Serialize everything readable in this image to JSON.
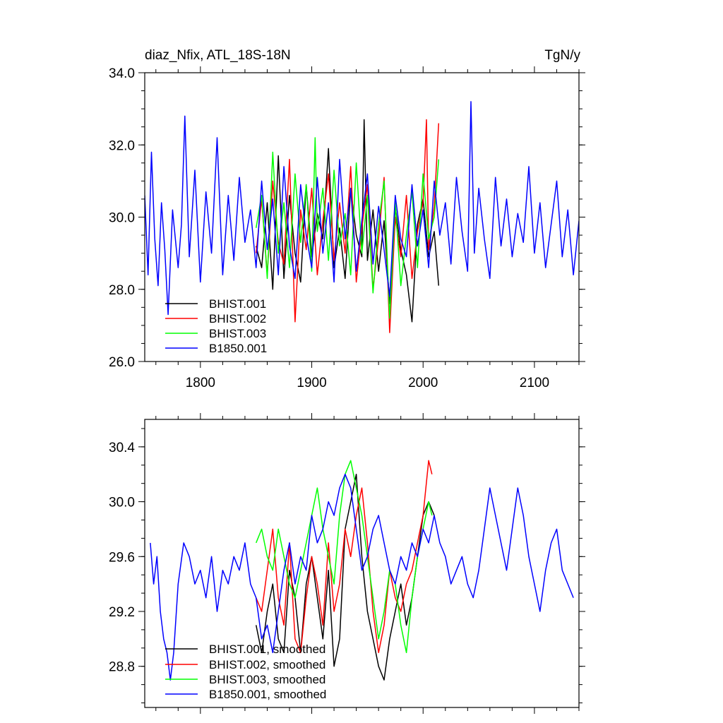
{
  "chart_data": [
    {
      "type": "line",
      "title": "diaz_Nfix, ATL_18S-18N",
      "units": "TgN/y",
      "xlim": [
        1750,
        2140
      ],
      "ylim": [
        26.0,
        34.0
      ],
      "x_ticks": [
        1800,
        1900,
        2000,
        2100
      ],
      "x_tick_labels": [
        "1800",
        "1900",
        "2000",
        "2100"
      ],
      "y_ticks": [
        26.0,
        28.0,
        30.0,
        32.0,
        34.0
      ],
      "y_tick_labels": [
        "26.0",
        "28.0",
        "30.0",
        "32.0",
        "34.0"
      ],
      "legend_position": "bottom-left",
      "series": [
        {
          "name": "BHIST.001",
          "color": "#000000",
          "x": [
            1850,
            1855,
            1860,
            1865,
            1870,
            1875,
            1880,
            1885,
            1890,
            1895,
            1900,
            1905,
            1910,
            1915,
            1920,
            1925,
            1930,
            1935,
            1940,
            1945,
            1947,
            1950,
            1955,
            1960,
            1965,
            1970,
            1975,
            1980,
            1985,
            1990,
            1995,
            2000,
            2005,
            2010,
            2014
          ],
          "y": [
            29.2,
            28.6,
            30.4,
            28.0,
            31.7,
            28.3,
            30.6,
            29.0,
            28.2,
            30.9,
            28.9,
            30.1,
            29.4,
            31.9,
            28.6,
            29.7,
            28.3,
            30.8,
            29.5,
            28.9,
            32.7,
            28.8,
            30.2,
            28.5,
            29.9,
            27.6,
            30.3,
            29.1,
            28.4,
            27.1,
            29.8,
            30.5,
            28.9,
            29.6,
            28.1
          ]
        },
        {
          "name": "BHIST.002",
          "color": "#ff0000",
          "x": [
            1850,
            1855,
            1860,
            1865,
            1870,
            1875,
            1880,
            1885,
            1890,
            1895,
            1900,
            1905,
            1910,
            1915,
            1920,
            1925,
            1930,
            1935,
            1940,
            1945,
            1950,
            1955,
            1960,
            1965,
            1970,
            1975,
            1980,
            1985,
            1990,
            1995,
            2000,
            2003,
            2005,
            2010,
            2014
          ],
          "y": [
            29.0,
            30.5,
            28.4,
            31.0,
            29.3,
            28.7,
            31.6,
            27.1,
            30.2,
            29.1,
            30.8,
            28.4,
            29.9,
            31.2,
            28.8,
            30.4,
            29.0,
            31.4,
            28.2,
            29.7,
            30.9,
            28.0,
            29.4,
            31.1,
            26.8,
            30.0,
            28.9,
            30.6,
            28.3,
            29.6,
            30.4,
            32.7,
            29.1,
            30.3,
            32.6
          ]
        },
        {
          "name": "BHIST.003",
          "color": "#00ff00",
          "x": [
            1850,
            1855,
            1860,
            1865,
            1870,
            1875,
            1880,
            1885,
            1890,
            1895,
            1900,
            1903,
            1905,
            1910,
            1915,
            1920,
            1925,
            1930,
            1935,
            1940,
            1945,
            1950,
            1955,
            1960,
            1965,
            1970,
            1975,
            1980,
            1985,
            1990,
            1995,
            2000,
            2005,
            2010,
            2014
          ],
          "y": [
            29.7,
            30.6,
            28.3,
            31.8,
            29.0,
            30.4,
            28.6,
            31.2,
            29.3,
            30.9,
            28.5,
            32.2,
            29.6,
            30.8,
            28.8,
            31.3,
            29.2,
            30.1,
            28.4,
            31.5,
            29.0,
            30.6,
            27.9,
            29.8,
            31.0,
            27.2,
            30.4,
            28.1,
            29.5,
            30.7,
            28.6,
            31.2,
            29.4,
            30.0,
            31.6
          ]
        },
        {
          "name": "B1850.001",
          "color": "#0000ff",
          "x": [
            1750,
            1753,
            1756,
            1759,
            1762,
            1765,
            1768,
            1771,
            1775,
            1780,
            1783,
            1786,
            1790,
            1795,
            1800,
            1805,
            1810,
            1815,
            1820,
            1825,
            1830,
            1835,
            1840,
            1845,
            1850,
            1855,
            1860,
            1865,
            1870,
            1875,
            1880,
            1885,
            1890,
            1895,
            1900,
            1905,
            1910,
            1915,
            1920,
            1925,
            1930,
            1935,
            1940,
            1945,
            1950,
            1955,
            1960,
            1965,
            1970,
            1975,
            1980,
            1985,
            1990,
            1995,
            2000,
            2005,
            2010,
            2015,
            2020,
            2025,
            2030,
            2035,
            2040,
            2043,
            2046,
            2050,
            2055,
            2060,
            2065,
            2070,
            2075,
            2080,
            2085,
            2090,
            2095,
            2100,
            2105,
            2110,
            2115,
            2120,
            2125,
            2130,
            2135,
            2140
          ],
          "y": [
            30.6,
            28.4,
            31.8,
            29.4,
            28.1,
            30.4,
            29.1,
            27.3,
            30.2,
            28.6,
            29.8,
            32.8,
            28.9,
            31.3,
            28.2,
            30.7,
            29.0,
            32.2,
            28.4,
            30.6,
            28.8,
            31.1,
            29.3,
            30.2,
            28.6,
            31.0,
            29.1,
            30.5,
            28.4,
            31.4,
            29.2,
            28.3,
            30.9,
            29.5,
            28.6,
            31.1,
            29.0,
            30.4,
            28.2,
            31.6,
            29.4,
            30.8,
            28.5,
            29.9,
            31.2,
            28.7,
            30.3,
            29.1,
            27.8,
            30.6,
            29.4,
            28.9,
            30.9,
            29.2,
            30.2,
            28.6,
            31.0,
            29.5,
            30.4,
            28.7,
            31.1,
            29.6,
            28.5,
            33.2,
            29.0,
            30.8,
            29.4,
            28.3,
            31.1,
            29.2,
            30.5,
            28.9,
            30.1,
            29.3,
            31.4,
            29.0,
            30.4,
            28.6,
            29.8,
            31.0,
            28.9,
            30.2,
            28.4,
            29.9
          ]
        }
      ]
    },
    {
      "type": "line",
      "xlim": [
        1750,
        2140
      ],
      "ylim": [
        28.5,
        30.6
      ],
      "x_ticks": [
        1800,
        1900,
        2000,
        2100
      ],
      "y_ticks": [
        28.8,
        29.2,
        29.6,
        30.0,
        30.4
      ],
      "y_tick_labels": [
        "28.8",
        "29.2",
        "29.6",
        "30.0",
        "30.4"
      ],
      "legend_position": "bottom-left",
      "series": [
        {
          "name": "BHIST.001, smoothed",
          "color": "#000000",
          "x": [
            1850,
            1855,
            1860,
            1865,
            1870,
            1875,
            1880,
            1885,
            1890,
            1895,
            1900,
            1905,
            1910,
            1915,
            1920,
            1925,
            1930,
            1935,
            1940,
            1945,
            1950,
            1955,
            1960,
            1965,
            1970,
            1975,
            1980,
            1985,
            1990,
            1995,
            2000,
            2005,
            2010
          ],
          "y": [
            29.1,
            28.9,
            29.2,
            29.4,
            29.0,
            28.9,
            29.5,
            29.3,
            28.9,
            29.4,
            29.6,
            29.3,
            29.0,
            29.5,
            28.8,
            29.0,
            29.8,
            30.0,
            30.2,
            29.6,
            29.2,
            29.0,
            28.8,
            28.7,
            29.0,
            29.2,
            29.4,
            29.1,
            29.3,
            29.6,
            29.9,
            30.0,
            29.9
          ]
        },
        {
          "name": "BHIST.002, smoothed",
          "color": "#ff0000",
          "x": [
            1850,
            1855,
            1860,
            1865,
            1870,
            1875,
            1880,
            1885,
            1890,
            1895,
            1900,
            1905,
            1910,
            1915,
            1920,
            1925,
            1930,
            1935,
            1940,
            1945,
            1950,
            1955,
            1960,
            1965,
            1970,
            1975,
            1980,
            1985,
            1990,
            1995,
            2000,
            2005,
            2008
          ],
          "y": [
            29.3,
            29.2,
            29.5,
            29.8,
            29.3,
            29.1,
            29.7,
            29.0,
            28.9,
            29.3,
            29.6,
            29.4,
            29.1,
            29.7,
            29.2,
            29.4,
            29.8,
            29.6,
            29.9,
            30.1,
            29.7,
            29.2,
            28.9,
            29.1,
            29.5,
            29.3,
            29.2,
            29.4,
            29.5,
            29.7,
            29.9,
            30.3,
            30.2
          ]
        },
        {
          "name": "BHIST.003, smoothed",
          "color": "#00ff00",
          "x": [
            1850,
            1855,
            1860,
            1865,
            1870,
            1875,
            1880,
            1885,
            1890,
            1895,
            1900,
            1905,
            1910,
            1915,
            1920,
            1925,
            1930,
            1935,
            1940,
            1945,
            1950,
            1955,
            1960,
            1965,
            1970,
            1975,
            1980,
            1985,
            1990,
            1995,
            2000,
            2005,
            2008
          ],
          "y": [
            29.7,
            29.8,
            29.6,
            29.5,
            29.8,
            29.6,
            29.4,
            29.3,
            29.5,
            29.7,
            29.9,
            30.1,
            29.8,
            29.6,
            29.4,
            29.9,
            30.2,
            30.3,
            30.1,
            29.9,
            29.6,
            29.3,
            29.0,
            29.2,
            29.5,
            29.4,
            29.1,
            28.9,
            29.3,
            29.6,
            29.8,
            30.0,
            29.9
          ]
        },
        {
          "name": "B1850.001, smoothed",
          "color": "#0000ff",
          "x": [
            1755,
            1758,
            1761,
            1764,
            1767,
            1770,
            1773,
            1776,
            1780,
            1785,
            1790,
            1795,
            1800,
            1805,
            1810,
            1815,
            1820,
            1825,
            1830,
            1835,
            1840,
            1845,
            1850,
            1855,
            1860,
            1865,
            1870,
            1875,
            1880,
            1885,
            1890,
            1895,
            1900,
            1905,
            1910,
            1915,
            1920,
            1925,
            1930,
            1935,
            1940,
            1945,
            1950,
            1955,
            1960,
            1965,
            1970,
            1975,
            1980,
            1985,
            1990,
            1995,
            2000,
            2005,
            2010,
            2015,
            2020,
            2025,
            2030,
            2035,
            2040,
            2045,
            2050,
            2055,
            2060,
            2065,
            2070,
            2075,
            2080,
            2085,
            2090,
            2095,
            2100,
            2105,
            2110,
            2115,
            2120,
            2125,
            2130,
            2135
          ],
          "y": [
            29.7,
            29.4,
            29.6,
            29.2,
            29.0,
            28.9,
            28.7,
            28.9,
            29.4,
            29.7,
            29.6,
            29.4,
            29.5,
            29.3,
            29.6,
            29.2,
            29.5,
            29.4,
            29.6,
            29.5,
            29.7,
            29.4,
            29.3,
            29.0,
            29.1,
            28.9,
            29.2,
            29.5,
            29.7,
            29.4,
            29.6,
            29.5,
            29.9,
            29.7,
            29.8,
            30.0,
            29.9,
            30.1,
            30.2,
            30.1,
            29.8,
            29.5,
            29.6,
            29.8,
            29.9,
            29.7,
            29.5,
            29.4,
            29.6,
            29.5,
            29.7,
            29.6,
            29.8,
            29.7,
            29.9,
            29.7,
            29.6,
            29.4,
            29.5,
            29.6,
            29.4,
            29.3,
            29.5,
            29.8,
            30.1,
            29.9,
            29.7,
            29.5,
            29.8,
            30.1,
            29.9,
            29.6,
            29.4,
            29.2,
            29.5,
            29.7,
            29.8,
            29.5,
            29.4,
            29.3
          ]
        }
      ]
    }
  ]
}
